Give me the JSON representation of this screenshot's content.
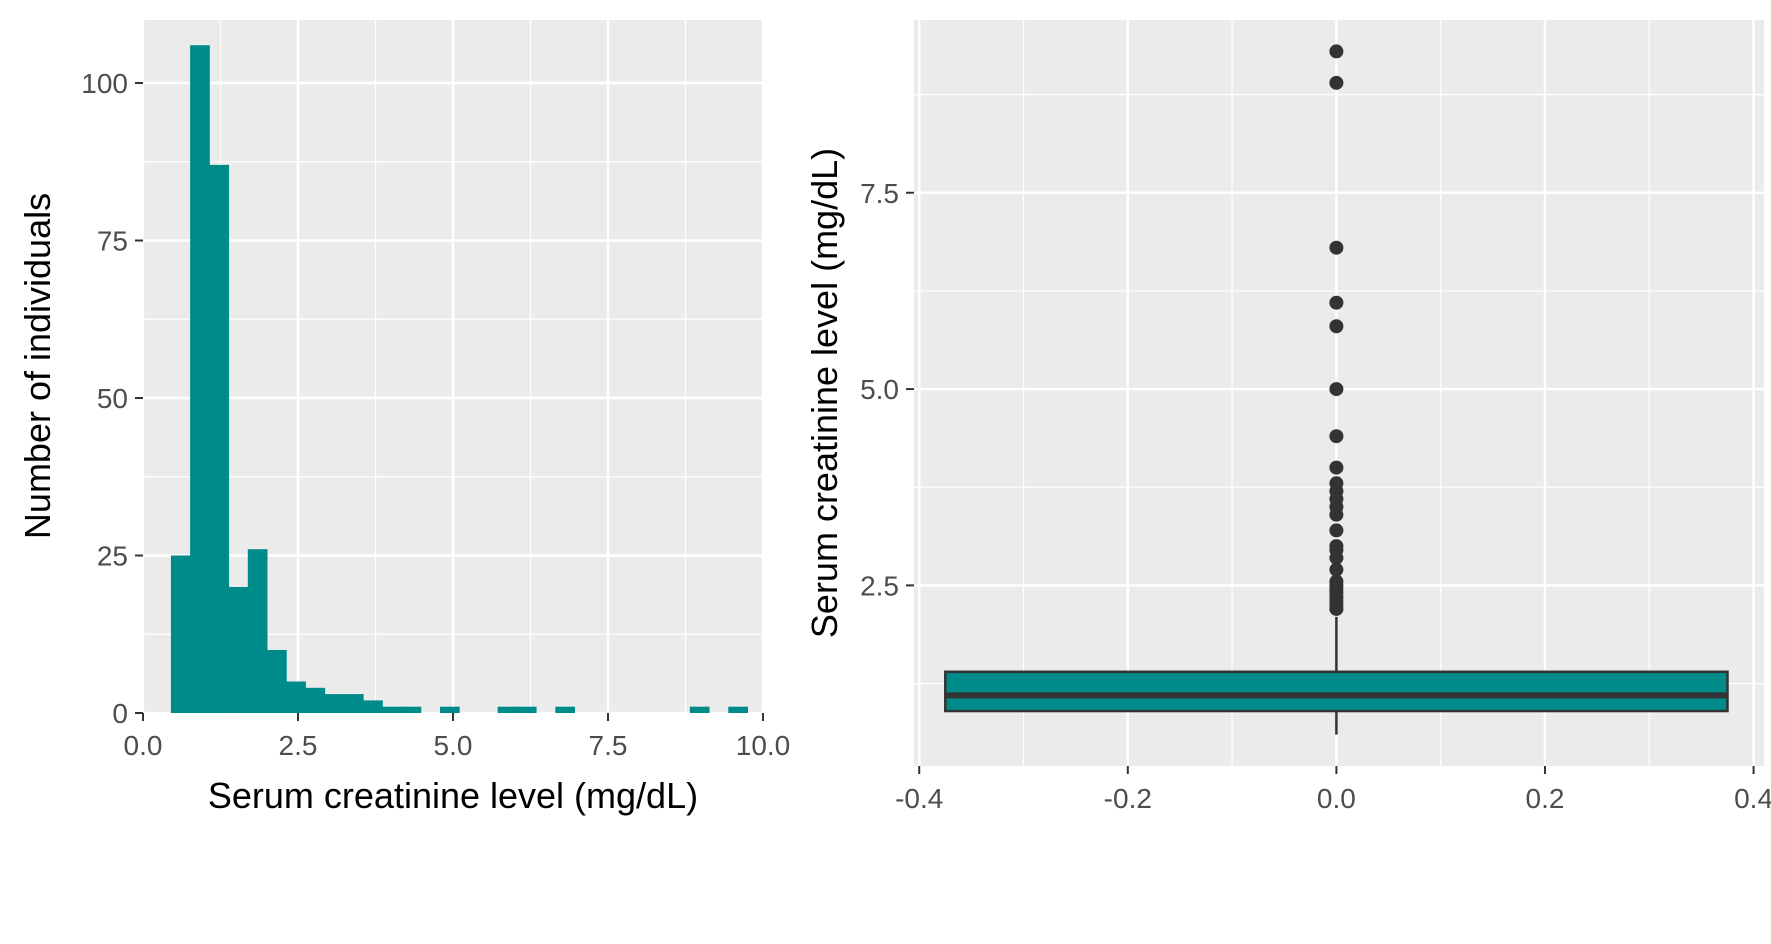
{
  "colors": {
    "panel_bg": "#EBEBEB",
    "grid": "#FFFFFF",
    "fill": "#008B8B",
    "outline": "#333333",
    "outlier": "#333333",
    "tick_text": "#4D4D4D",
    "title_text": "#000000"
  },
  "chart_data": [
    {
      "type": "histogram",
      "xlabel": "Serum creatinine level (mg/dL)",
      "ylabel": "Number of individuals",
      "xlim": [
        0,
        10
      ],
      "ylim": [
        0,
        110
      ],
      "grid": true,
      "legend": "none",
      "x_ticks": [
        "0.0",
        "2.5",
        "5.0",
        "7.5",
        "10.0"
      ],
      "x_tick_values": [
        0,
        2.5,
        5,
        7.5,
        10
      ],
      "y_ticks": [
        "0",
        "25",
        "50",
        "75",
        "100"
      ],
      "y_tick_values": [
        0,
        25,
        50,
        75,
        100
      ],
      "bin_width": 0.31,
      "bins": [
        {
          "x0": 0.45,
          "x1": 0.76,
          "count": 25
        },
        {
          "x0": 0.76,
          "x1": 1.07,
          "count": 106
        },
        {
          "x0": 1.07,
          "x1": 1.38,
          "count": 87
        },
        {
          "x0": 1.38,
          "x1": 1.69,
          "count": 20
        },
        {
          "x0": 1.69,
          "x1": 2.0,
          "count": 26
        },
        {
          "x0": 2.0,
          "x1": 2.31,
          "count": 10
        },
        {
          "x0": 2.31,
          "x1": 2.62,
          "count": 5
        },
        {
          "x0": 2.62,
          "x1": 2.93,
          "count": 4
        },
        {
          "x0": 2.93,
          "x1": 3.24,
          "count": 3
        },
        {
          "x0": 3.24,
          "x1": 3.55,
          "count": 3
        },
        {
          "x0": 3.55,
          "x1": 3.86,
          "count": 2
        },
        {
          "x0": 3.86,
          "x1": 4.17,
          "count": 1
        },
        {
          "x0": 4.17,
          "x1": 4.48,
          "count": 1
        },
        {
          "x0": 4.79,
          "x1": 5.1,
          "count": 1
        },
        {
          "x0": 5.72,
          "x1": 6.03,
          "count": 1
        },
        {
          "x0": 6.03,
          "x1": 6.34,
          "count": 1
        },
        {
          "x0": 6.65,
          "x1": 6.96,
          "count": 1
        },
        {
          "x0": 8.82,
          "x1": 9.13,
          "count": 1
        },
        {
          "x0": 9.44,
          "x1": 9.75,
          "count": 1
        }
      ]
    },
    {
      "type": "boxplot",
      "xlabel": "",
      "ylabel": "Serum creatinine level (mg/dL)",
      "xlim": [
        -0.405,
        0.41
      ],
      "ylim": [
        0.2,
        9.7
      ],
      "grid": true,
      "legend": "none",
      "x_ticks": [
        "-0.4",
        "-0.2",
        "0.0",
        "0.2",
        "0.4"
      ],
      "x_tick_values": [
        -0.4,
        -0.2,
        0,
        0.2,
        0.4
      ],
      "y_ticks": [
        "2.5",
        "5.0",
        "7.5"
      ],
      "y_tick_values": [
        2.5,
        5,
        7.5
      ],
      "box": {
        "x_left": -0.375,
        "x_right": 0.375,
        "lower_whisker": 0.6,
        "q1": 0.9,
        "median": 1.1,
        "q3": 1.4,
        "upper_whisker": 2.1
      },
      "outliers": [
        2.2,
        2.25,
        2.3,
        2.35,
        2.4,
        2.45,
        2.5,
        2.55,
        2.7,
        2.85,
        2.95,
        3.0,
        3.2,
        3.4,
        3.5,
        3.6,
        3.7,
        3.8,
        4.0,
        4.4,
        5.0,
        5.8,
        6.1,
        6.8,
        8.9,
        9.3
      ]
    }
  ]
}
